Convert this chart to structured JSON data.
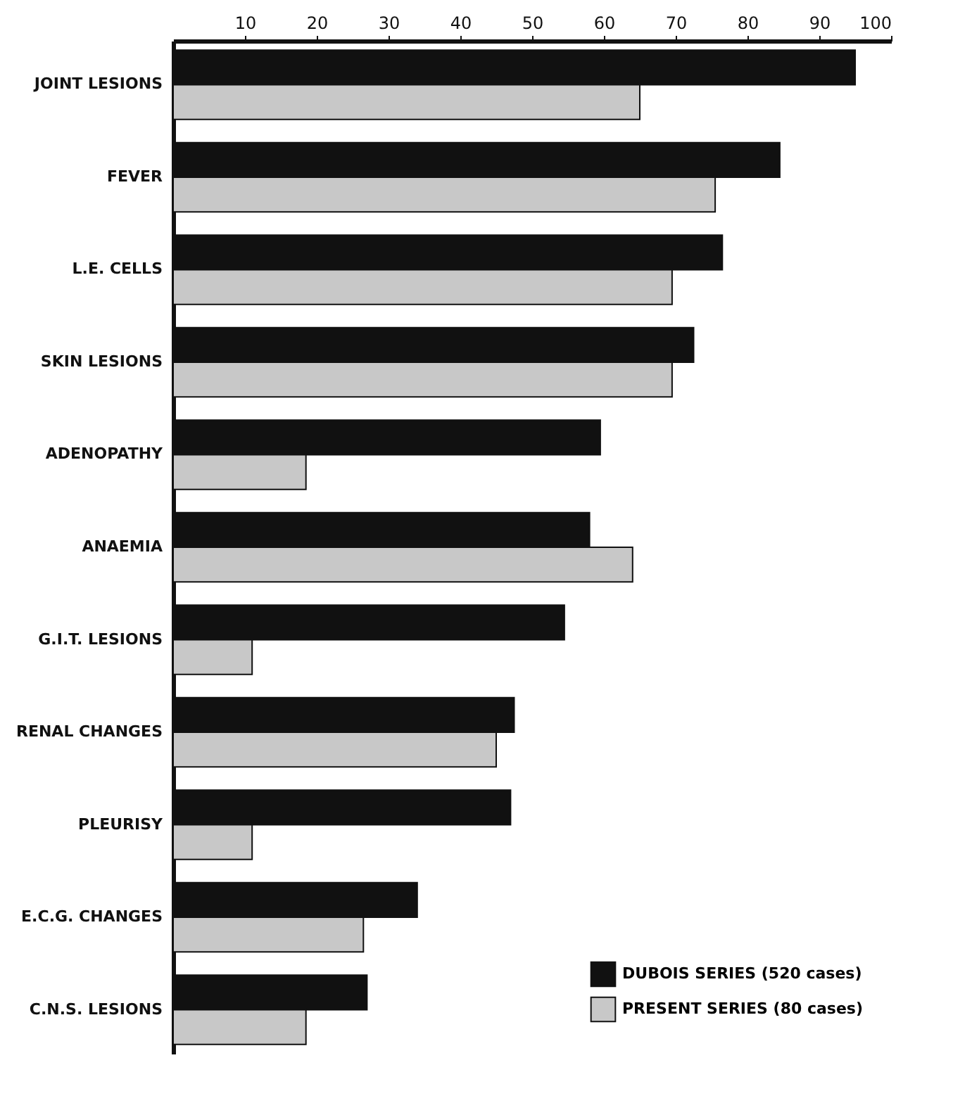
{
  "chart_data": {
    "type": "bar",
    "orientation": "horizontal",
    "categories": [
      "JOINT LESIONS",
      "FEVER",
      "L.E. CELLS",
      "SKIN LESIONS",
      "ADENOPATHY",
      "ANAEMIA",
      "G.I.T. LESIONS",
      "RENAL CHANGES",
      "PLEURISY",
      "E.C.G. CHANGES",
      "C.N.S. LESIONS"
    ],
    "series": [
      {
        "name": "DUBOIS SERIES (520 cases)",
        "color": "#111111",
        "values": [
          95,
          84.5,
          76.5,
          72.5,
          59.5,
          58,
          54.5,
          47.5,
          47,
          34,
          27
        ]
      },
      {
        "name": "PRESENT SERIES (80 cases)",
        "color": "#c8c8c8",
        "values": [
          65,
          75.5,
          69.5,
          69.5,
          18.5,
          64,
          11,
          45,
          11,
          26.5,
          18.5
        ]
      }
    ],
    "xlim": [
      0,
      100
    ],
    "xticks": [
      10,
      20,
      30,
      40,
      50,
      60,
      70,
      80,
      90,
      100
    ],
    "legend": "bottom right"
  }
}
